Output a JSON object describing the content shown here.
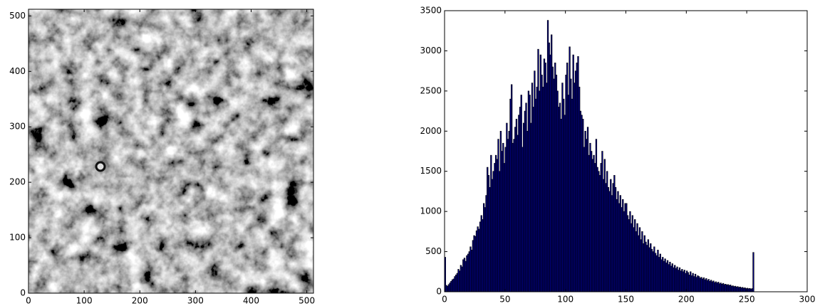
{
  "chart_data": [
    {
      "type": "image",
      "xlim": [
        0,
        512
      ],
      "ylim": [
        0,
        512
      ],
      "xticks": [
        0,
        100,
        200,
        300,
        400,
        500
      ],
      "yticks": [
        0,
        100,
        200,
        300,
        400,
        500
      ]
    },
    {
      "type": "histogram",
      "color": "#000080",
      "edgecolor": "#000000",
      "xlim": [
        0,
        300
      ],
      "ylim": [
        0,
        3500
      ],
      "xticks": [
        0,
        50,
        100,
        150,
        200,
        250,
        300
      ],
      "yticks": [
        0,
        500,
        1000,
        1500,
        2000,
        2500,
        3000,
        3500
      ],
      "bins": [
        0,
        1,
        2,
        3,
        4,
        5,
        6,
        7,
        8,
        9,
        10,
        11,
        12,
        13,
        14,
        15,
        16,
        17,
        18,
        19,
        20,
        21,
        22,
        23,
        24,
        25,
        26,
        27,
        28,
        29,
        30,
        31,
        32,
        33,
        34,
        35,
        36,
        37,
        38,
        39,
        40,
        41,
        42,
        43,
        44,
        45,
        46,
        47,
        48,
        49,
        50,
        51,
        52,
        53,
        54,
        55,
        56,
        57,
        58,
        59,
        60,
        61,
        62,
        63,
        64,
        65,
        66,
        67,
        68,
        69,
        70,
        71,
        72,
        73,
        74,
        75,
        76,
        77,
        78,
        79,
        80,
        81,
        82,
        83,
        84,
        85,
        86,
        87,
        88,
        89,
        90,
        91,
        92,
        93,
        94,
        95,
        96,
        97,
        98,
        99,
        100,
        101,
        102,
        103,
        104,
        105,
        106,
        107,
        108,
        109,
        110,
        111,
        112,
        113,
        114,
        115,
        116,
        117,
        118,
        119,
        120,
        121,
        122,
        123,
        124,
        125,
        126,
        127,
        128,
        129,
        130,
        131,
        132,
        133,
        134,
        135,
        136,
        137,
        138,
        139,
        140,
        141,
        142,
        143,
        144,
        145,
        146,
        147,
        148,
        149,
        150,
        151,
        152,
        153,
        154,
        155,
        156,
        157,
        158,
        159,
        160,
        161,
        162,
        163,
        164,
        165,
        166,
        167,
        168,
        169,
        170,
        171,
        172,
        173,
        174,
        175,
        176,
        177,
        178,
        179,
        180,
        181,
        182,
        183,
        184,
        185,
        186,
        187,
        188,
        189,
        190,
        191,
        192,
        193,
        194,
        195,
        196,
        197,
        198,
        199,
        200,
        201,
        202,
        203,
        204,
        205,
        206,
        207,
        208,
        209,
        210,
        211,
        212,
        213,
        214,
        215,
        216,
        217,
        218,
        219,
        220,
        221,
        222,
        223,
        224,
        225,
        226,
        227,
        228,
        229,
        230,
        231,
        232,
        233,
        234,
        235,
        236,
        237,
        238,
        239,
        240,
        241,
        242,
        243,
        244,
        245,
        246,
        247,
        248,
        249,
        250,
        251,
        252,
        253,
        254,
        255,
        256
      ],
      "values": [
        430,
        80,
        70,
        90,
        110,
        130,
        150,
        160,
        190,
        210,
        230,
        280,
        260,
        330,
        310,
        400,
        420,
        380,
        450,
        470,
        500,
        560,
        520,
        640,
        700,
        690,
        760,
        810,
        780,
        870,
        950,
        900,
        1100,
        1050,
        1200,
        1550,
        1450,
        1300,
        1700,
        1400,
        1500,
        1600,
        1700,
        1650,
        1900,
        1500,
        2000,
        1750,
        1850,
        1600,
        1800,
        2100,
        1900,
        2000,
        2400,
        2580,
        1850,
        1900,
        2050,
        2150,
        1950,
        2200,
        2300,
        2450,
        1800,
        2100,
        2250,
        2350,
        2000,
        2500,
        2450,
        2100,
        2600,
        2300,
        2750,
        2400,
        2550,
        3020,
        2500,
        2950,
        2700,
        2550,
        2900,
        2850,
        2600,
        3380,
        3100,
        2950,
        3200,
        2800,
        2650,
        2850,
        2700,
        2500,
        2300,
        2350,
        2150,
        2600,
        2400,
        2200,
        2700,
        2850,
        2450,
        3050,
        2650,
        2400,
        2950,
        2600,
        2750,
        2850,
        2930,
        2550,
        2250,
        2200,
        2150,
        1800,
        2000,
        1900,
        2050,
        1700,
        1850,
        1750,
        1650,
        1700,
        1600,
        1900,
        1550,
        1500,
        1450,
        1600,
        1750,
        1400,
        1650,
        1350,
        1500,
        1300,
        1250,
        1400,
        1200,
        1350,
        1450,
        1300,
        1150,
        1250,
        1100,
        1200,
        1050,
        1150,
        1000,
        1100,
        1100,
        950,
        900,
        1000,
        850,
        950,
        800,
        900,
        750,
        850,
        700,
        800,
        650,
        750,
        600,
        700,
        620,
        580,
        650,
        550,
        600,
        530,
        500,
        560,
        480,
        450,
        520,
        430,
        470,
        400,
        430,
        380,
        410,
        360,
        390,
        340,
        370,
        320,
        350,
        300,
        330,
        290,
        310,
        270,
        300,
        260,
        280,
        250,
        270,
        230,
        260,
        240,
        210,
        250,
        200,
        230,
        190,
        220,
        180,
        200,
        190,
        170,
        180,
        160,
        175,
        150,
        165,
        140,
        155,
        130,
        145,
        125,
        135,
        115,
        125,
        110,
        120,
        100,
        110,
        95,
        105,
        90,
        95,
        85,
        90,
        80,
        85,
        70,
        75,
        65,
        70,
        60,
        65,
        55,
        60,
        50,
        55,
        45,
        50,
        40,
        45,
        38,
        42,
        35,
        40,
        490
      ]
    }
  ]
}
